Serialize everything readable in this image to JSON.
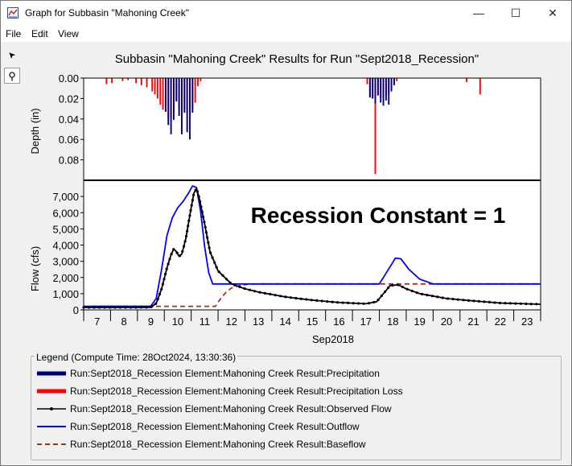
{
  "window": {
    "title": "Graph for Subbasin \"Mahoning Creek\"",
    "minimize_glyph": "—",
    "maximize_glyph": "☐",
    "close_glyph": "✕"
  },
  "menu": [
    "File",
    "Edit",
    "View"
  ],
  "tools": [
    {
      "icon": "pointer-icon",
      "glyph": "➤"
    },
    {
      "icon": "zoom-icon",
      "glyph": "⚲"
    }
  ],
  "chart_data": {
    "title": "Subbasin \"Mahoning Creek\" Results for Run \"Sept2018_Recession\"",
    "annotation": "Recession Constant = 1",
    "x_label": "Sep2018",
    "x_range": [
      6.5,
      23.5
    ],
    "x_ticks": [
      "7",
      "8",
      "9",
      "10",
      "11",
      "12",
      "13",
      "14",
      "15",
      "16",
      "17",
      "18",
      "19",
      "20",
      "21",
      "22",
      "23"
    ],
    "top_panel": {
      "type": "bar",
      "y_label": "Depth (in)",
      "y_inverted": true,
      "y_range": [
        0,
        0.1
      ],
      "y_ticks": [
        "0.00",
        "0.02",
        "0.04",
        "0.06",
        "0.08"
      ],
      "series": [
        {
          "name": "Run:Sept2018_Recession Element:Mahoning Creek Result:Precipitation",
          "color": "#00007f",
          "points": [
            [
              9.55,
              0.033
            ],
            [
              9.65,
              0.046
            ],
            [
              9.75,
              0.055
            ],
            [
              9.85,
              0.041
            ],
            [
              9.95,
              0.023
            ],
            [
              10.05,
              0.037
            ],
            [
              10.15,
              0.055
            ],
            [
              10.25,
              0.034
            ],
            [
              10.35,
              0.053
            ],
            [
              10.45,
              0.06
            ],
            [
              10.55,
              0.034
            ],
            [
              17.15,
              0.019
            ],
            [
              17.25,
              0.02
            ],
            [
              17.35,
              0.025
            ],
            [
              17.45,
              0.017
            ],
            [
              17.55,
              0.024
            ],
            [
              17.65,
              0.027
            ],
            [
              17.75,
              0.022
            ],
            [
              17.85,
              0.026
            ],
            [
              17.95,
              0.013
            ],
            [
              18.05,
              0.007
            ]
          ]
        },
        {
          "name": "Run:Sept2018_Recession Element:Mahoning Creek Result:Precipitation Loss",
          "color": "#ff0000",
          "points": [
            [
              7.35,
              0.006
            ],
            [
              7.55,
              0.005
            ],
            [
              7.95,
              0.003
            ],
            [
              8.15,
              0.002
            ],
            [
              8.45,
              0.005
            ],
            [
              8.65,
              0.007
            ],
            [
              8.85,
              0.009
            ],
            [
              9.05,
              0.013
            ],
            [
              9.15,
              0.016
            ],
            [
              9.25,
              0.02
            ],
            [
              9.35,
              0.026
            ],
            [
              9.45,
              0.031
            ],
            [
              9.55,
              0.033
            ],
            [
              9.65,
              0.04
            ],
            [
              9.75,
              0.038
            ],
            [
              9.85,
              0.034
            ],
            [
              9.95,
              0.022
            ],
            [
              10.05,
              0.031
            ],
            [
              10.15,
              0.036
            ],
            [
              10.25,
              0.03
            ],
            [
              10.35,
              0.034
            ],
            [
              10.45,
              0.035
            ],
            [
              10.55,
              0.03
            ],
            [
              10.65,
              0.024
            ],
            [
              10.75,
              0.008
            ],
            [
              10.85,
              0.003
            ],
            [
              17.05,
              0.006
            ],
            [
              17.15,
              0.018
            ],
            [
              17.25,
              0.02
            ],
            [
              17.35,
              0.094
            ],
            [
              17.45,
              0.017
            ],
            [
              17.55,
              0.019
            ],
            [
              17.65,
              0.02
            ],
            [
              17.75,
              0.017
            ],
            [
              17.85,
              0.015
            ],
            [
              17.95,
              0.011
            ],
            [
              18.05,
              0.006
            ],
            [
              18.15,
              0.003
            ],
            [
              20.75,
              0.004
            ],
            [
              21.25,
              0.016
            ]
          ]
        }
      ]
    },
    "bottom_panel": {
      "type": "line",
      "y_label": "Flow (cfs)",
      "y_range": [
        0,
        8000
      ],
      "y_ticks": [
        "0",
        "1,000",
        "2,000",
        "3,000",
        "4,000",
        "5,000",
        "6,000",
        "7,000"
      ],
      "series": [
        {
          "name": "Run:Sept2018_Recession Element:Mahoning Creek Result:Observed Flow",
          "color": "#000000",
          "style": "line-dot",
          "points": [
            [
              6.5,
              150
            ],
            [
              8.5,
              150
            ],
            [
              9.0,
              160
            ],
            [
              9.2,
              400
            ],
            [
              9.4,
              1300
            ],
            [
              9.6,
              2600
            ],
            [
              9.75,
              3400
            ],
            [
              9.85,
              3750
            ],
            [
              9.95,
              3600
            ],
            [
              10.05,
              3300
            ],
            [
              10.15,
              3450
            ],
            [
              10.3,
              4400
            ],
            [
              10.5,
              6300
            ],
            [
              10.6,
              7200
            ],
            [
              10.7,
              7500
            ],
            [
              10.8,
              6900
            ],
            [
              11.0,
              5300
            ],
            [
              11.2,
              3600
            ],
            [
              11.5,
              2400
            ],
            [
              12.0,
              1600
            ],
            [
              12.5,
              1300
            ],
            [
              13.0,
              1100
            ],
            [
              14.0,
              800
            ],
            [
              15.0,
              600
            ],
            [
              16.0,
              450
            ],
            [
              17.0,
              380
            ],
            [
              17.4,
              500
            ],
            [
              17.7,
              1100
            ],
            [
              17.9,
              1500
            ],
            [
              18.2,
              1550
            ],
            [
              18.5,
              1300
            ],
            [
              19.0,
              1000
            ],
            [
              20.0,
              700
            ],
            [
              21.0,
              550
            ],
            [
              22.0,
              420
            ],
            [
              23.5,
              350
            ]
          ]
        },
        {
          "name": "Run:Sept2018_Recession Element:Mahoning Creek Result:Outflow",
          "color": "#0000ff",
          "style": "solid",
          "points": [
            [
              6.5,
              220
            ],
            [
              9.0,
              230
            ],
            [
              9.2,
              700
            ],
            [
              9.4,
              2500
            ],
            [
              9.6,
              4600
            ],
            [
              9.8,
              5700
            ],
            [
              10.0,
              6300
            ],
            [
              10.2,
              6700
            ],
            [
              10.4,
              7200
            ],
            [
              10.55,
              7650
            ],
            [
              10.7,
              7550
            ],
            [
              10.85,
              6100
            ],
            [
              11.0,
              3900
            ],
            [
              11.15,
              2300
            ],
            [
              11.3,
              1600
            ],
            [
              12.0,
              1600
            ],
            [
              17.5,
              1600
            ],
            [
              17.8,
              2400
            ],
            [
              18.1,
              3200
            ],
            [
              18.3,
              3150
            ],
            [
              18.6,
              2500
            ],
            [
              19.0,
              1900
            ],
            [
              19.5,
              1600
            ],
            [
              23.5,
              1600
            ]
          ]
        },
        {
          "name": "Run:Sept2018_Recession Element:Mahoning Creek Result:Baseflow",
          "color": "#a0302a",
          "style": "dashed",
          "points": [
            [
              6.5,
              220
            ],
            [
              11.4,
              220
            ],
            [
              11.6,
              700
            ],
            [
              11.8,
              1100
            ],
            [
              12.0,
              1350
            ],
            [
              12.3,
              1500
            ],
            [
              12.6,
              1580
            ],
            [
              13.0,
              1600
            ],
            [
              23.5,
              1600
            ]
          ]
        }
      ]
    }
  },
  "legend": {
    "title": "Legend (Compute Time: 28Oct2024, 13:30:36)",
    "items": [
      {
        "label": "Run:Sept2018_Recession Element:Mahoning Creek Result:Precipitation",
        "color": "#00007f",
        "style": "thick"
      },
      {
        "label": "Run:Sept2018_Recession Element:Mahoning Creek Result:Precipitation Loss",
        "color": "#ff0000",
        "style": "thick"
      },
      {
        "label": "Run:Sept2018_Recession Element:Mahoning Creek Result:Observed Flow",
        "color": "#000000",
        "style": "line-dot"
      },
      {
        "label": "Run:Sept2018_Recession Element:Mahoning Creek Result:Outflow",
        "color": "#0000ff",
        "style": "solid"
      },
      {
        "label": "Run:Sept2018_Recession Element:Mahoning Creek Result:Baseflow",
        "color": "#a0302a",
        "style": "dashed"
      }
    ]
  }
}
